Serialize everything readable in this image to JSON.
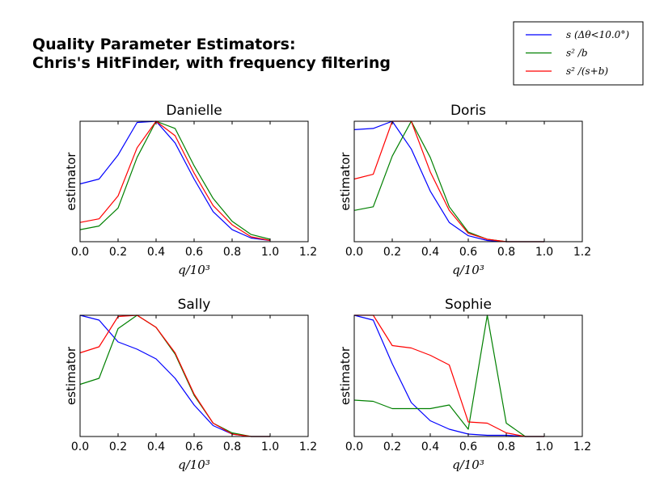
{
  "figure": {
    "title_line1": "Quality Parameter Estimators:",
    "title_line2": "Chris's HitFinder, with frequency filtering"
  },
  "legend": [
    {
      "label": "s (Δθ<10.0°)",
      "color": "#0000ff"
    },
    {
      "label": "s² /b",
      "color": "#008000"
    },
    {
      "label": "s² /(s+b)",
      "color": "#ff0000"
    }
  ],
  "chart_data": [
    {
      "type": "line",
      "title": "Danielle",
      "xlabel": "q/10³",
      "ylabel": "estimator",
      "xlim": [
        0,
        1.2
      ],
      "ylim": [
        0,
        1
      ],
      "xticks": [
        "0.0",
        "0.2",
        "0.4",
        "0.6",
        "0.8",
        "1.0",
        "1.2"
      ],
      "x": [
        0.0,
        0.1,
        0.2,
        0.3,
        0.4,
        0.5,
        0.6,
        0.7,
        0.8,
        0.9,
        1.0
      ],
      "series": [
        {
          "name": "s (Δθ<10.0°)",
          "color": "#0000ff",
          "values": [
            0.48,
            0.52,
            0.72,
            0.99,
            1.0,
            0.82,
            0.52,
            0.25,
            0.1,
            0.03,
            0.01
          ]
        },
        {
          "name": "s² /b",
          "color": "#008000",
          "values": [
            0.1,
            0.13,
            0.28,
            0.7,
            1.0,
            0.94,
            0.63,
            0.36,
            0.17,
            0.06,
            0.02
          ]
        },
        {
          "name": "s² /(s+b)",
          "color": "#ff0000",
          "values": [
            0.16,
            0.19,
            0.38,
            0.78,
            1.0,
            0.88,
            0.57,
            0.3,
            0.14,
            0.04,
            0.01
          ]
        }
      ]
    },
    {
      "type": "line",
      "title": "Doris",
      "xlabel": "q/10³",
      "ylabel": "estimator",
      "xlim": [
        0,
        1.2
      ],
      "ylim": [
        0,
        1
      ],
      "xticks": [
        "0.0",
        "0.2",
        "0.4",
        "0.6",
        "0.8",
        "1.0",
        "1.2"
      ],
      "x": [
        0.0,
        0.1,
        0.2,
        0.3,
        0.4,
        0.5,
        0.6,
        0.7,
        0.8,
        0.9,
        1.0
      ],
      "series": [
        {
          "name": "s (Δθ<10.0°)",
          "color": "#0000ff",
          "values": [
            0.93,
            0.94,
            1.0,
            0.77,
            0.42,
            0.16,
            0.05,
            0.01,
            0.0,
            0.0,
            0.0
          ]
        },
        {
          "name": "s² /b",
          "color": "#008000",
          "values": [
            0.26,
            0.29,
            0.71,
            1.0,
            0.7,
            0.29,
            0.08,
            0.02,
            0.0,
            0.0,
            0.0
          ]
        },
        {
          "name": "s² /(s+b)",
          "color": "#ff0000",
          "values": [
            0.52,
            0.56,
            1.0,
            1.0,
            0.58,
            0.26,
            0.07,
            0.02,
            0.0,
            0.0,
            0.0
          ]
        }
      ]
    },
    {
      "type": "line",
      "title": "Sally",
      "xlabel": "q/10³",
      "ylabel": "estimator",
      "xlim": [
        0,
        1.2
      ],
      "ylim": [
        0,
        1
      ],
      "xticks": [
        "0.0",
        "0.2",
        "0.4",
        "0.6",
        "0.8",
        "1.0",
        "1.2"
      ],
      "x": [
        0.0,
        0.1,
        0.2,
        0.3,
        0.4,
        0.5,
        0.6,
        0.7,
        0.8,
        0.9,
        1.0
      ],
      "series": [
        {
          "name": "s (Δθ<10.0°)",
          "color": "#0000ff",
          "values": [
            1.0,
            0.96,
            0.78,
            0.72,
            0.64,
            0.48,
            0.26,
            0.09,
            0.02,
            0.0,
            0.0
          ]
        },
        {
          "name": "s² /b",
          "color": "#008000",
          "values": [
            0.43,
            0.48,
            0.89,
            1.0,
            0.9,
            0.68,
            0.34,
            0.11,
            0.03,
            0.0,
            0.0
          ]
        },
        {
          "name": "s² /(s+b)",
          "color": "#ff0000",
          "values": [
            0.69,
            0.74,
            0.99,
            1.0,
            0.9,
            0.69,
            0.35,
            0.11,
            0.02,
            0.0,
            0.0
          ]
        }
      ]
    },
    {
      "type": "line",
      "title": "Sophie",
      "xlabel": "q/10³",
      "ylabel": "estimator",
      "xlim": [
        0,
        1.2
      ],
      "ylim": [
        0,
        1
      ],
      "xticks": [
        "0.0",
        "0.2",
        "0.4",
        "0.6",
        "0.8",
        "1.0",
        "1.2"
      ],
      "x": [
        0.0,
        0.1,
        0.2,
        0.3,
        0.4,
        0.5,
        0.6,
        0.7,
        0.8,
        0.9,
        1.0
      ],
      "series": [
        {
          "name": "s (Δθ<10.0°)",
          "color": "#0000ff",
          "values": [
            1.0,
            0.96,
            0.6,
            0.28,
            0.13,
            0.06,
            0.02,
            0.01,
            0.01,
            0.0,
            0.0
          ]
        },
        {
          "name": "s² /b",
          "color": "#008000",
          "values": [
            0.3,
            0.29,
            0.23,
            0.23,
            0.23,
            0.26,
            0.06,
            1.0,
            0.11,
            0.0,
            0.0
          ]
        },
        {
          "name": "s² /(s+b)",
          "color": "#ff0000",
          "values": [
            1.0,
            1.0,
            0.75,
            0.73,
            0.67,
            0.59,
            0.12,
            0.11,
            0.03,
            0.0,
            0.0
          ]
        }
      ]
    }
  ]
}
